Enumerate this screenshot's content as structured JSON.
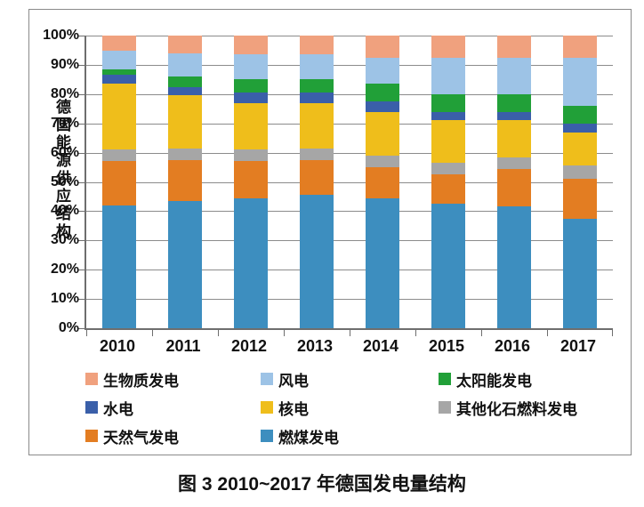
{
  "figure": {
    "caption": "图 3  2010~2017 年德国发电量结构"
  },
  "chart_data": {
    "type": "bar",
    "stacked": true,
    "normalized_percent": true,
    "title": "",
    "xlabel": "",
    "ylabel": "德国能源供应结构",
    "ylim": [
      0,
      100
    ],
    "yticks": [
      "0%",
      "10%",
      "20%",
      "30%",
      "40%",
      "50%",
      "60%",
      "70%",
      "80%",
      "90%",
      "100%"
    ],
    "grid": true,
    "categories": [
      "2010",
      "2011",
      "2012",
      "2013",
      "2014",
      "2015",
      "2016",
      "2017"
    ],
    "series_order": "bottom_to_top",
    "series": [
      {
        "key": "coal",
        "name": "燃煤发电",
        "color": "#3D8EBF",
        "values": [
          42,
          43.5,
          44.5,
          45.5,
          44.5,
          42.5,
          41.5,
          37.5
        ]
      },
      {
        "key": "natural_gas",
        "name": "天然气发电",
        "color": "#E37D22",
        "values": [
          15,
          14,
          12.5,
          12,
          10.5,
          10,
          13,
          13.5
        ]
      },
      {
        "key": "other_fossil",
        "name": "其他化石燃料发电",
        "color": "#A6A6A6",
        "values": [
          4,
          4,
          4,
          4,
          4,
          4,
          4,
          4.5
        ]
      },
      {
        "key": "nuclear",
        "name": "核电",
        "color": "#EFBE1B",
        "values": [
          22.5,
          18,
          16,
          15.5,
          15,
          14.5,
          12.5,
          11.5
        ]
      },
      {
        "key": "hydro",
        "name": "水电",
        "color": "#3A5FA9",
        "values": [
          3,
          3,
          3.5,
          3.5,
          3.5,
          3,
          3,
          3
        ]
      },
      {
        "key": "solar",
        "name": "太阳能发电",
        "color": "#21A038",
        "values": [
          2,
          3.5,
          4.5,
          4.5,
          6,
          6,
          6,
          6
        ]
      },
      {
        "key": "wind",
        "name": "风电",
        "color": "#9DC3E6",
        "values": [
          6.5,
          8,
          8.5,
          8.5,
          9,
          12.5,
          12.5,
          16.5
        ]
      },
      {
        "key": "biomass",
        "name": "生物质发电",
        "color": "#F0A17E",
        "values": [
          5,
          6,
          6.5,
          6.5,
          7.5,
          7.5,
          7.5,
          7.5
        ]
      }
    ],
    "legend": {
      "position": "bottom",
      "columns": 3,
      "order": [
        "biomass",
        "wind",
        "solar",
        "hydro",
        "nuclear",
        "other_fossil",
        "natural_gas",
        "coal"
      ]
    }
  }
}
